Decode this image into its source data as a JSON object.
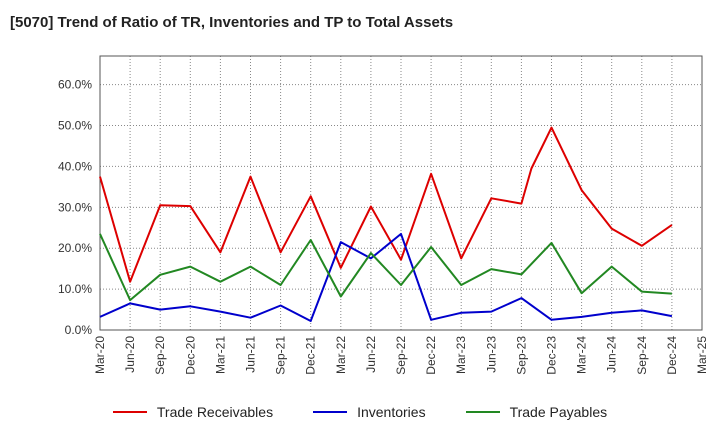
{
  "title": "[5070]  Trend of Ratio of TR, Inventories and TP to Total Assets",
  "chart_data": {
    "type": "line",
    "title": "[5070]  Trend of Ratio of TR, Inventories and TP to Total Assets",
    "xlabel": "",
    "ylabel": "",
    "x_ticks": [
      "Mar-20",
      "Jun-20",
      "Sep-20",
      "Dec-20",
      "Mar-21",
      "Jun-21",
      "Sep-21",
      "Dec-21",
      "Mar-22",
      "Jun-22",
      "Sep-22",
      "Dec-22",
      "Mar-23",
      "Jun-23",
      "Sep-23",
      "Dec-23",
      "Mar-24",
      "Jun-24",
      "Sep-24",
      "Dec-24",
      "Mar-25"
    ],
    "y_ticks": [
      "0.0%",
      "10.0%",
      "20.0%",
      "30.0%",
      "40.0%",
      "50.0%",
      "60.0%"
    ],
    "y_tick_values": [
      0,
      10,
      20,
      30,
      40,
      50,
      60
    ],
    "ylim": [
      0,
      67
    ],
    "grid": true,
    "legend_position": "bottom",
    "series": [
      {
        "name": "Trade Receivables",
        "color": "#dd0000",
        "points": [
          [
            "Mar-20",
            37.5
          ],
          [
            "Jun-20",
            11.8
          ],
          [
            "Sep-20",
            30.5
          ],
          [
            "Dec-20",
            30.3
          ],
          [
            "Mar-21",
            19.0
          ],
          [
            "Jun-21",
            37.5
          ],
          [
            "Sep-21",
            19.0
          ],
          [
            "Dec-21",
            32.7
          ],
          [
            "Mar-22",
            15.2
          ],
          [
            "Jun-22",
            30.2
          ],
          [
            "Sep-22",
            17.2
          ],
          [
            "Dec-22",
            38.2
          ],
          [
            "Mar-23",
            17.5
          ],
          [
            "Jun-23",
            32.2
          ],
          [
            "Sep-23",
            30.9
          ],
          [
            "Oct-23",
            39.5
          ],
          [
            "Nov-23",
            44.5
          ],
          [
            "Dec-23",
            49.5
          ],
          [
            "Mar-24",
            34.2
          ],
          [
            "Jun-24",
            24.8
          ],
          [
            "Sep-24",
            20.6
          ],
          [
            "Dec-24",
            25.7
          ]
        ]
      },
      {
        "name": "Inventories",
        "color": "#0000cc",
        "points": [
          [
            "Mar-20",
            3.2
          ],
          [
            "Jun-20",
            6.5
          ],
          [
            "Sep-20",
            5.0
          ],
          [
            "Dec-20",
            5.8
          ],
          [
            "Mar-21",
            4.5
          ],
          [
            "Jun-21",
            3.0
          ],
          [
            "Sep-21",
            6.0
          ],
          [
            "Dec-21",
            2.2
          ],
          [
            "Mar-22",
            21.5
          ],
          [
            "Jun-22",
            17.5
          ],
          [
            "Sep-22",
            23.5
          ],
          [
            "Dec-22",
            2.5
          ],
          [
            "Mar-23",
            4.2
          ],
          [
            "Jun-23",
            4.5
          ],
          [
            "Sep-23",
            7.8
          ],
          [
            "Dec-23",
            2.5
          ],
          [
            "Mar-24",
            3.2
          ],
          [
            "Jun-24",
            4.2
          ],
          [
            "Sep-24",
            4.8
          ],
          [
            "Dec-24",
            3.4
          ]
        ]
      },
      {
        "name": "Trade Payables",
        "color": "#228822",
        "points": [
          [
            "Mar-20",
            23.5
          ],
          [
            "Jun-20",
            7.3
          ],
          [
            "Sep-20",
            13.5
          ],
          [
            "Dec-20",
            15.5
          ],
          [
            "Mar-21",
            11.8
          ],
          [
            "Jun-21",
            15.5
          ],
          [
            "Sep-21",
            11.0
          ],
          [
            "Dec-21",
            22.0
          ],
          [
            "Mar-22",
            8.2
          ],
          [
            "Jun-22",
            18.8
          ],
          [
            "Sep-22",
            11.0
          ],
          [
            "Dec-22",
            20.3
          ],
          [
            "Mar-23",
            11.0
          ],
          [
            "Jun-23",
            14.9
          ],
          [
            "Sep-23",
            13.6
          ],
          [
            "Dec-23",
            21.3
          ],
          [
            "Mar-24",
            9.0
          ],
          [
            "Jun-24",
            15.5
          ],
          [
            "Sep-24",
            9.4
          ],
          [
            "Dec-24",
            8.9
          ]
        ]
      }
    ]
  }
}
